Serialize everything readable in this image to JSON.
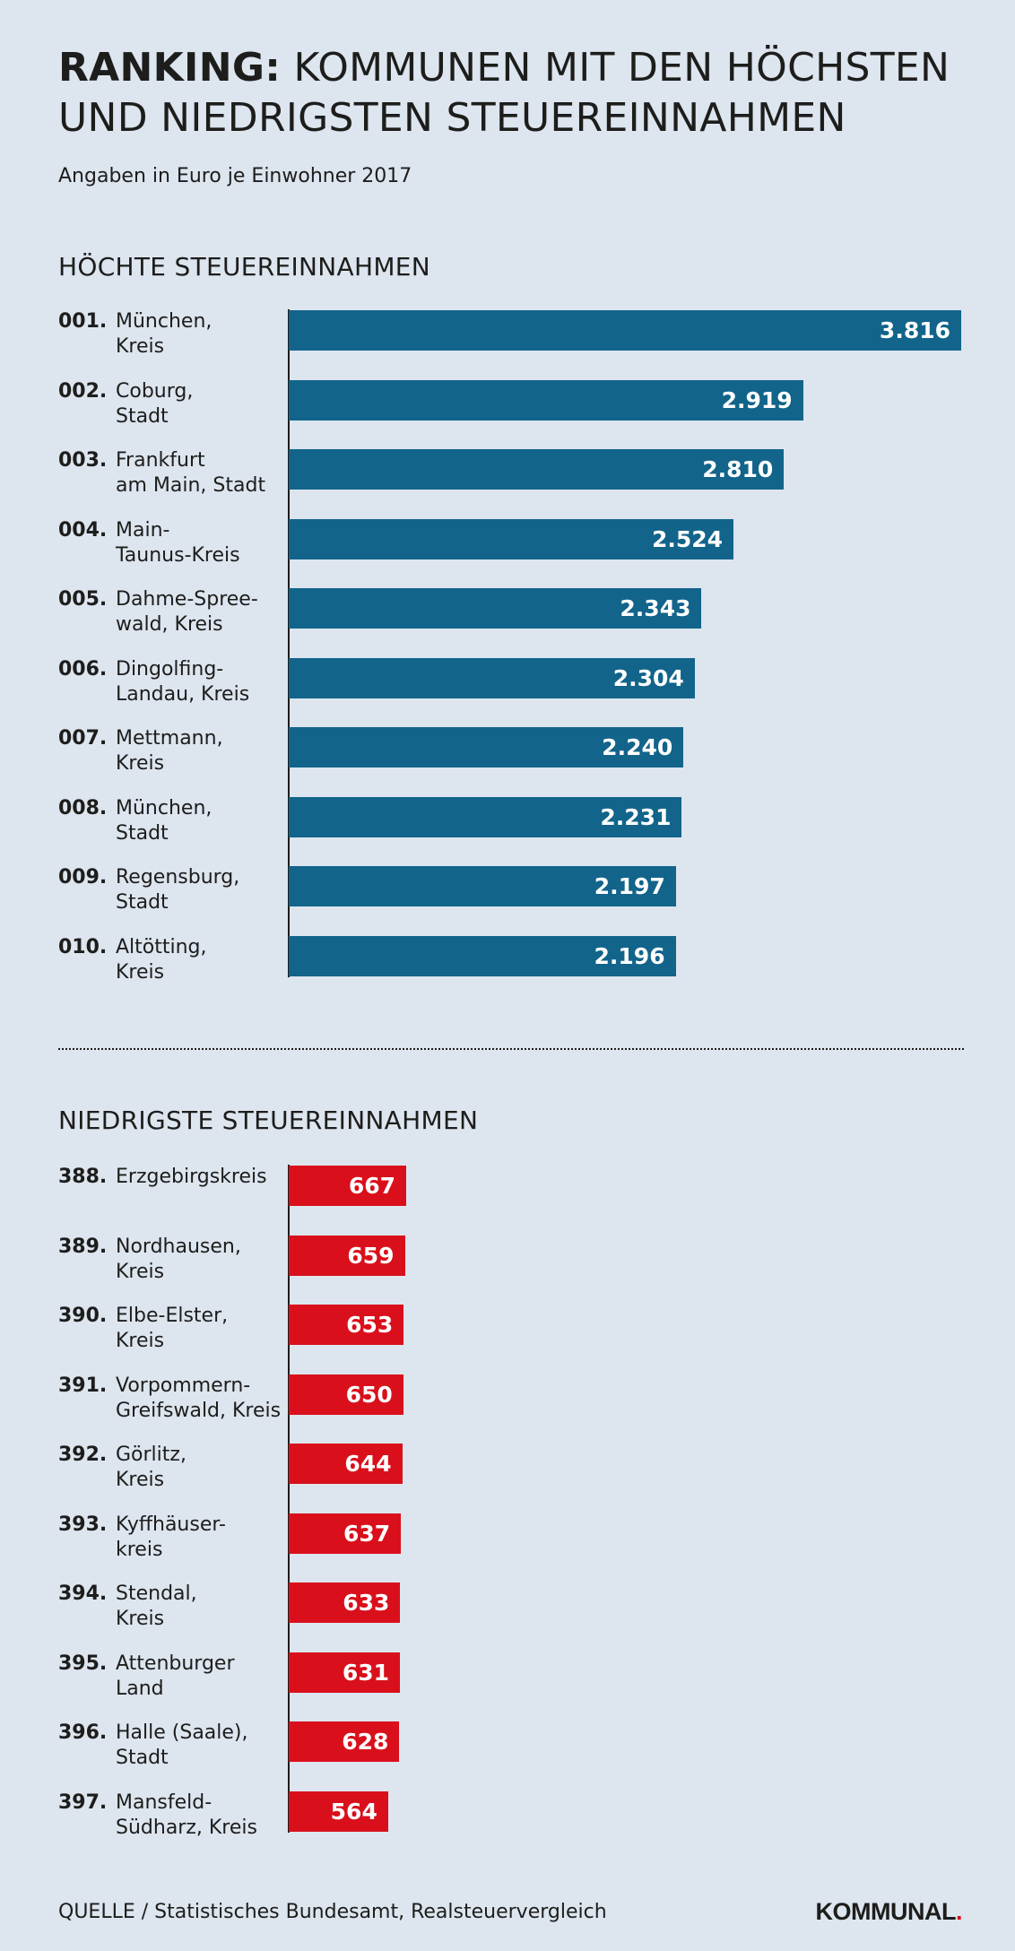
{
  "header": {
    "title_bold": "RANKING:",
    "title_rest": " KOMMUNEN MIT DEN HÖCHSTEN UND NIEDRIGSTEN STEUEREINNAHMEN",
    "subtitle": "Angaben in Euro je Einwohner 2017"
  },
  "chart_data": [
    {
      "type": "bar",
      "orientation": "horizontal",
      "title": "HÖCHTE STEUEREINNAHMEN",
      "color": "#12648a",
      "ranks": [
        "001.",
        "002.",
        "003.",
        "004.",
        "005.",
        "006.",
        "007.",
        "008.",
        "009.",
        "010."
      ],
      "categories": [
        [
          "München,",
          "Kreis"
        ],
        [
          "Coburg,",
          "Stadt"
        ],
        [
          "Frankfurt",
          "am Main, Stadt"
        ],
        [
          "Main-",
          "Taunus-Kreis"
        ],
        [
          "Dahme-Spree-",
          "wald, Kreis"
        ],
        [
          "Dingolfing-",
          "Landau, Kreis"
        ],
        [
          "Mettmann,",
          "Kreis"
        ],
        [
          "München,",
          "Stadt"
        ],
        [
          "Regensburg,",
          "Stadt"
        ],
        [
          "Altötting,",
          "Kreis"
        ]
      ],
      "values": [
        3816,
        2919,
        2810,
        2524,
        2343,
        2304,
        2240,
        2231,
        2197,
        2196
      ],
      "value_labels": [
        "3.816",
        "2.919",
        "2.810",
        "2.524",
        "2.343",
        "2.304",
        "2.240",
        "2.231",
        "2.197",
        "2.196"
      ],
      "xlim": [
        0,
        3816
      ]
    },
    {
      "type": "bar",
      "orientation": "horizontal",
      "title": "NIEDRIGSTE STEUEREINNAHMEN",
      "color": "#d9101b",
      "ranks": [
        "388.",
        "389.",
        "390.",
        "391.",
        "392.",
        "393.",
        "394.",
        "395.",
        "396.",
        "397."
      ],
      "categories": [
        [
          "Erzgebirgskreis"
        ],
        [
          "Nordhausen,",
          "Kreis"
        ],
        [
          "Elbe-Elster,",
          "Kreis"
        ],
        [
          "Vorpommern-",
          "Greifswald, Kreis"
        ],
        [
          "Görlitz,",
          "Kreis"
        ],
        [
          "Kyffhäuser-",
          "kreis"
        ],
        [
          "Stendal,",
          "Kreis"
        ],
        [
          "Attenburger",
          "Land"
        ],
        [
          "Halle (Saale),",
          "Stadt"
        ],
        [
          "Mansfeld-",
          "Südharz, Kreis"
        ]
      ],
      "values": [
        667,
        659,
        653,
        650,
        644,
        637,
        633,
        631,
        628,
        564
      ],
      "value_labels": [
        "667",
        "659",
        "653",
        "650",
        "644",
        "637",
        "633",
        "631",
        "628",
        "564"
      ],
      "xlim": [
        0,
        3816
      ]
    }
  ],
  "footer": {
    "source": "QUELLE / Statistisches Bundesamt, Realsteuervergleich",
    "logo_text": "KOMMUNAL",
    "logo_dot": "."
  }
}
